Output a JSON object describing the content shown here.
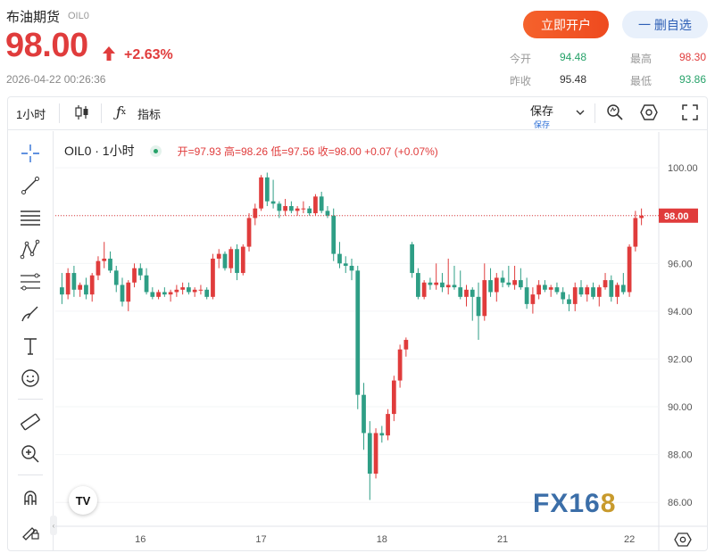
{
  "header": {
    "name": "布油期货",
    "code": "OIL0",
    "price": "98.00",
    "change_pct": "+2.63%",
    "timestamp": "2026-04-22 00:26:36",
    "open_account_label": "立即开户",
    "remove_watch_label": "一 删自选"
  },
  "stats": {
    "today_open_label": "今开",
    "today_open": "94.48",
    "high_label": "最高",
    "high": "98.30",
    "prev_close_label": "昨收",
    "prev_close": "95.48",
    "low_label": "最低",
    "low": "93.86"
  },
  "toolbar": {
    "interval": "1小时",
    "indicators_label": "指标",
    "save_label": "保存",
    "save_sub": "保存"
  },
  "legend": {
    "symbol": "OIL0 · 1小时",
    "ohlc": "开=97.93  高=98.26  低=97.56  收=98.00  +0.07 (+0.07%)"
  },
  "watermark": {
    "fx": "FX16",
    "eight": "8"
  },
  "colors": {
    "up": "#e03c3c",
    "down": "#2e9e85",
    "accent": "#f5622c"
  },
  "chart_data": {
    "type": "candlestick",
    "x_ticks": [
      "16",
      "17",
      "18",
      "21",
      "22"
    ],
    "y_ticks": [
      "100.00",
      "98.00",
      "96.00",
      "94.00",
      "92.00",
      "90.00",
      "88.00",
      "86.00"
    ],
    "ylim": [
      85.0,
      101.5
    ],
    "last_price_label": "98.00",
    "last_price": 98.0,
    "candles": [
      [
        95.0,
        95.6,
        94.3,
        94.7
      ],
      [
        94.7,
        95.8,
        94.5,
        95.6
      ],
      [
        95.6,
        95.9,
        94.6,
        94.9
      ],
      [
        94.9,
        95.2,
        94.6,
        95.1
      ],
      [
        95.1,
        95.4,
        94.5,
        94.7
      ],
      [
        94.7,
        95.6,
        94.4,
        95.5
      ],
      [
        95.5,
        96.3,
        95.3,
        96.1
      ],
      [
        96.1,
        96.9,
        95.8,
        96.2
      ],
      [
        96.2,
        96.5,
        95.6,
        95.7
      ],
      [
        95.7,
        95.9,
        94.8,
        95.1
      ],
      [
        95.1,
        95.4,
        94.2,
        94.4
      ],
      [
        94.4,
        95.3,
        94.0,
        95.2
      ],
      [
        95.2,
        96.0,
        95.0,
        95.8
      ],
      [
        95.8,
        96.0,
        95.3,
        95.5
      ],
      [
        95.5,
        95.8,
        94.7,
        94.8
      ],
      [
        94.8,
        95.0,
        94.5,
        94.6
      ],
      [
        94.6,
        94.9,
        94.5,
        94.8
      ],
      [
        94.8,
        95.0,
        94.6,
        94.7
      ],
      [
        94.7,
        94.9,
        94.4,
        94.8
      ],
      [
        94.8,
        95.1,
        94.6,
        94.9
      ],
      [
        94.9,
        95.2,
        94.7,
        95.0
      ],
      [
        95.0,
        95.2,
        94.7,
        94.8
      ],
      [
        94.8,
        95.0,
        94.6,
        94.9
      ],
      [
        94.9,
        95.1,
        94.7,
        94.9
      ],
      [
        94.9,
        95.0,
        94.5,
        94.6
      ],
      [
        94.6,
        96.4,
        94.5,
        96.2
      ],
      [
        96.2,
        96.6,
        95.8,
        96.4
      ],
      [
        96.4,
        96.5,
        95.7,
        95.8
      ],
      [
        95.8,
        96.7,
        95.6,
        96.6
      ],
      [
        96.6,
        96.8,
        95.3,
        95.6
      ],
      [
        95.6,
        96.8,
        95.5,
        96.7
      ],
      [
        96.7,
        98.1,
        96.5,
        97.9
      ],
      [
        97.9,
        98.5,
        97.6,
        98.3
      ],
      [
        98.3,
        99.7,
        98.2,
        99.6
      ],
      [
        99.6,
        99.8,
        98.4,
        98.6
      ],
      [
        98.6,
        99.5,
        98.3,
        98.5
      ],
      [
        98.5,
        98.6,
        97.9,
        98.2
      ],
      [
        98.2,
        98.7,
        98.0,
        98.4
      ],
      [
        98.4,
        98.6,
        98.1,
        98.2
      ],
      [
        98.2,
        98.4,
        98.0,
        98.3
      ],
      [
        98.3,
        98.6,
        98.1,
        98.3
      ],
      [
        98.3,
        98.4,
        98.0,
        98.1
      ],
      [
        98.1,
        98.9,
        98.0,
        98.8
      ],
      [
        98.8,
        99.0,
        98.1,
        98.2
      ],
      [
        98.2,
        98.4,
        97.9,
        98.0
      ],
      [
        98.0,
        98.3,
        96.1,
        96.4
      ],
      [
        96.4,
        96.9,
        95.8,
        96.0
      ],
      [
        96.0,
        96.3,
        95.6,
        95.9
      ],
      [
        95.9,
        96.2,
        95.3,
        95.7
      ],
      [
        95.7,
        95.9,
        89.9,
        90.5
      ],
      [
        90.5,
        91.0,
        88.2,
        88.9
      ],
      [
        88.9,
        89.4,
        86.1,
        87.2
      ],
      [
        87.2,
        89.1,
        87.0,
        88.9
      ],
      [
        88.9,
        89.2,
        88.5,
        88.8
      ],
      [
        88.8,
        89.9,
        88.6,
        89.7
      ],
      [
        89.7,
        91.3,
        89.4,
        91.1
      ],
      [
        91.1,
        92.6,
        90.8,
        92.4
      ],
      [
        92.4,
        92.9,
        92.1,
        92.8
      ],
      [
        96.8,
        96.9,
        95.4,
        95.6
      ],
      [
        95.6,
        95.8,
        94.5,
        94.6
      ],
      [
        94.6,
        95.3,
        94.5,
        95.2
      ],
      [
        95.2,
        95.4,
        94.9,
        95.1
      ],
      [
        95.1,
        96.0,
        94.9,
        95.2
      ],
      [
        95.2,
        95.6,
        94.8,
        95.0
      ],
      [
        95.0,
        96.2,
        94.7,
        95.1
      ],
      [
        95.1,
        95.9,
        94.9,
        95.0
      ],
      [
        95.0,
        95.7,
        94.5,
        94.6
      ],
      [
        94.6,
        95.1,
        94.2,
        94.9
      ],
      [
        94.9,
        95.0,
        93.6,
        94.6
      ],
      [
        94.6,
        95.2,
        92.8,
        93.8
      ],
      [
        93.8,
        96.0,
        93.6,
        95.3
      ],
      [
        95.3,
        95.8,
        94.6,
        94.8
      ],
      [
        94.8,
        95.6,
        94.4,
        95.4
      ],
      [
        95.4,
        95.7,
        95.0,
        95.2
      ],
      [
        95.2,
        95.9,
        95.0,
        95.1
      ],
      [
        95.1,
        95.9,
        94.9,
        95.3
      ],
      [
        95.3,
        95.8,
        94.9,
        95.0
      ],
      [
        95.0,
        95.4,
        94.1,
        94.3
      ],
      [
        94.3,
        95.0,
        93.9,
        94.7
      ],
      [
        94.7,
        95.3,
        94.5,
        95.1
      ],
      [
        95.1,
        95.3,
        94.8,
        94.9
      ],
      [
        94.9,
        95.1,
        94.6,
        95.0
      ],
      [
        95.0,
        95.2,
        94.7,
        94.8
      ],
      [
        94.8,
        95.0,
        94.3,
        94.5
      ],
      [
        94.5,
        94.7,
        94.0,
        94.3
      ],
      [
        94.3,
        95.2,
        94.0,
        95.0
      ],
      [
        95.0,
        95.3,
        94.6,
        94.7
      ],
      [
        94.7,
        95.1,
        94.4,
        95.0
      ],
      [
        95.0,
        95.2,
        94.5,
        94.6
      ],
      [
        94.6,
        95.1,
        94.2,
        95.0
      ],
      [
        95.0,
        95.6,
        94.9,
        95.3
      ],
      [
        95.3,
        95.5,
        94.4,
        94.6
      ],
      [
        94.6,
        95.2,
        94.3,
        95.1
      ],
      [
        95.1,
        95.6,
        94.7,
        94.8
      ],
      [
        94.8,
        96.8,
        94.6,
        96.7
      ],
      [
        96.7,
        98.2,
        96.5,
        97.9
      ],
      [
        97.9,
        98.3,
        97.6,
        98.0
      ]
    ]
  }
}
